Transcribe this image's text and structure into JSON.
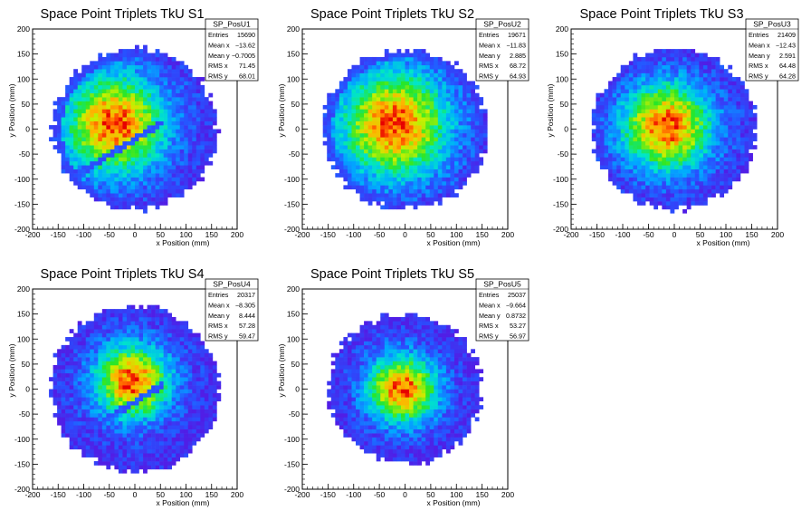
{
  "chart_data": [
    {
      "type": "heatmap",
      "title": "Space Point Triplets TkU S1",
      "xlabel": "x Position (mm)",
      "ylabel": "y Position (mm)",
      "xlim": [
        -200,
        200
      ],
      "ylim": [
        -200,
        200
      ],
      "xticks": [
        -200,
        -150,
        -100,
        -50,
        0,
        50,
        100,
        150,
        200
      ],
      "yticks": [
        -200,
        -150,
        -100,
        -50,
        0,
        50,
        100,
        150,
        200
      ],
      "stats": {
        "name": "SP_PosU1",
        "rows": [
          {
            "label": "Entries",
            "value": "15690"
          },
          {
            "label": "Mean x",
            "value": "−13.62"
          },
          {
            "label": "Mean y",
            "value": "−0.7005"
          },
          {
            "label": "RMS x",
            "value": "71.45"
          },
          {
            "label": "RMS y",
            "value": "68.01"
          }
        ]
      },
      "distribution": {
        "radius": 160,
        "center_x": -40,
        "center_y": 10,
        "sigma": 70,
        "stripe": true,
        "stripe_slope": 0.62,
        "stripe_intercept": -20
      }
    },
    {
      "type": "heatmap",
      "title": "Space Point Triplets TkU S2",
      "xlabel": "x Position (mm)",
      "ylabel": "y Position (mm)",
      "xlim": [
        -200,
        200
      ],
      "ylim": [
        -200,
        200
      ],
      "xticks": [
        -200,
        -150,
        -100,
        -50,
        0,
        50,
        100,
        150,
        200
      ],
      "yticks": [
        -200,
        -150,
        -100,
        -50,
        0,
        50,
        100,
        150,
        200
      ],
      "stats": {
        "name": "SP_PosU2",
        "rows": [
          {
            "label": "Entries",
            "value": "19671"
          },
          {
            "label": "Mean x",
            "value": "−11.83"
          },
          {
            "label": "Mean y",
            "value": "2.885"
          },
          {
            "label": "RMS x",
            "value": "68.72"
          },
          {
            "label": "RMS y",
            "value": "64.93"
          }
        ]
      },
      "distribution": {
        "radius": 160,
        "center_x": -20,
        "center_y": 10,
        "sigma": 75,
        "stripe": false
      }
    },
    {
      "type": "heatmap",
      "title": "Space Point Triplets TkU S3",
      "xlabel": "x Position (mm)",
      "ylabel": "y Position (mm)",
      "xlim": [
        -200,
        200
      ],
      "ylim": [
        -200,
        200
      ],
      "xticks": [
        -200,
        -150,
        -100,
        -50,
        0,
        50,
        100,
        150,
        200
      ],
      "yticks": [
        -200,
        -150,
        -100,
        -50,
        0,
        50,
        100,
        150,
        200
      ],
      "stats": {
        "name": "SP_PosU3",
        "rows": [
          {
            "label": "Entries",
            "value": "21409"
          },
          {
            "label": "Mean x",
            "value": "−12.43"
          },
          {
            "label": "Mean y",
            "value": "2.591"
          },
          {
            "label": "RMS x",
            "value": "64.48"
          },
          {
            "label": "RMS y",
            "value": "64.28"
          }
        ]
      },
      "distribution": {
        "radius": 160,
        "center_x": -15,
        "center_y": 5,
        "sigma": 62,
        "stripe": false
      }
    },
    {
      "type": "heatmap",
      "title": "Space Point Triplets TkU S4",
      "xlabel": "x Position (mm)",
      "ylabel": "y Position (mm)",
      "xlim": [
        -200,
        200
      ],
      "ylim": [
        -200,
        200
      ],
      "xticks": [
        -200,
        -150,
        -100,
        -50,
        0,
        50,
        100,
        150,
        200
      ],
      "yticks": [
        -200,
        -150,
        -100,
        -50,
        0,
        50,
        100,
        150,
        200
      ],
      "stats": {
        "name": "SP_PosU4",
        "rows": [
          {
            "label": "Entries",
            "value": "20317"
          },
          {
            "label": "Mean x",
            "value": "−8.305"
          },
          {
            "label": "Mean y",
            "value": "8.444"
          },
          {
            "label": "RMS x",
            "value": "57.28"
          },
          {
            "label": "RMS y",
            "value": "59.47"
          }
        ]
      },
      "distribution": {
        "radius": 165,
        "center_x": -5,
        "center_y": 15,
        "sigma": 52,
        "stripe": true,
        "stripe_slope": 0.62,
        "stripe_intercept": -25
      }
    },
    {
      "type": "heatmap",
      "title": "Space Point Triplets TkU S5",
      "xlabel": "x Position (mm)",
      "ylabel": "y Position (mm)",
      "xlim": [
        -200,
        200
      ],
      "ylim": [
        -200,
        200
      ],
      "xticks": [
        -200,
        -150,
        -100,
        -50,
        0,
        50,
        100,
        150,
        200
      ],
      "yticks": [
        -200,
        -150,
        -100,
        -50,
        0,
        50,
        100,
        150,
        200
      ],
      "stats": {
        "name": "SP_PosU5",
        "rows": [
          {
            "label": "Entries",
            "value": "25037"
          },
          {
            "label": "Mean x",
            "value": "−9.664"
          },
          {
            "label": "Mean y",
            "value": "0.8732"
          },
          {
            "label": "RMS x",
            "value": "53.27"
          },
          {
            "label": "RMS y",
            "value": "56.97"
          }
        ]
      },
      "distribution": {
        "radius": 150,
        "center_x": -5,
        "center_y": 0,
        "sigma": 48,
        "stripe": false
      }
    }
  ]
}
